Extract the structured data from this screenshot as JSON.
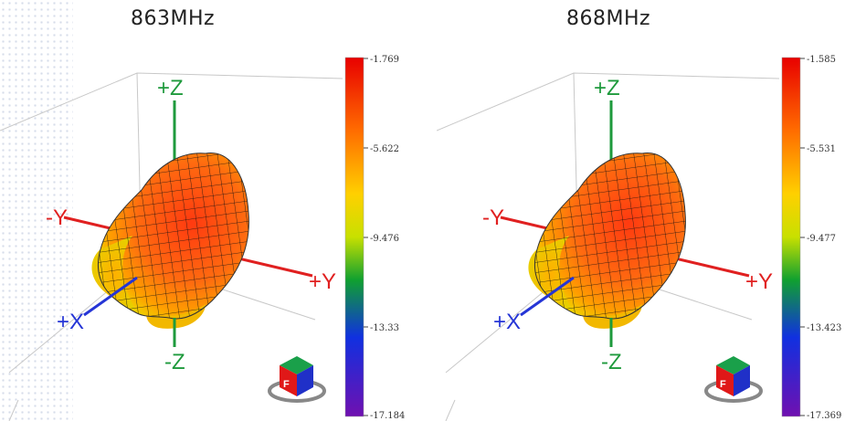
{
  "panels": [
    {
      "title": "863MHz",
      "axes": {
        "pz": "+Z",
        "nz": "-Z",
        "py": "+Y",
        "ny": "-Y",
        "px": "+X"
      },
      "colorbar": {
        "ticks": [
          "-1.769",
          "-5.622",
          "-9.476",
          "-13.33",
          "-17.184"
        ]
      },
      "orientation_cube": {
        "front_label": "F"
      }
    },
    {
      "title": "868MHz",
      "axes": {
        "pz": "+Z",
        "nz": "-Z",
        "py": "+Y",
        "ny": "-Y",
        "px": "+X"
      },
      "colorbar": {
        "ticks": [
          "-1.585",
          "-5.531",
          "-9.477",
          "-13.423",
          "-17.369"
        ]
      },
      "orientation_cube": {
        "front_label": "F"
      }
    }
  ],
  "colors": {
    "axis_z": "#1e9a3c",
    "axis_y": "#e02020",
    "axis_x": "#2535d6",
    "pattern_hot": "#ff4a1a",
    "pattern_warm": "#ff8a00",
    "pattern_cool": "#e8d400"
  }
}
